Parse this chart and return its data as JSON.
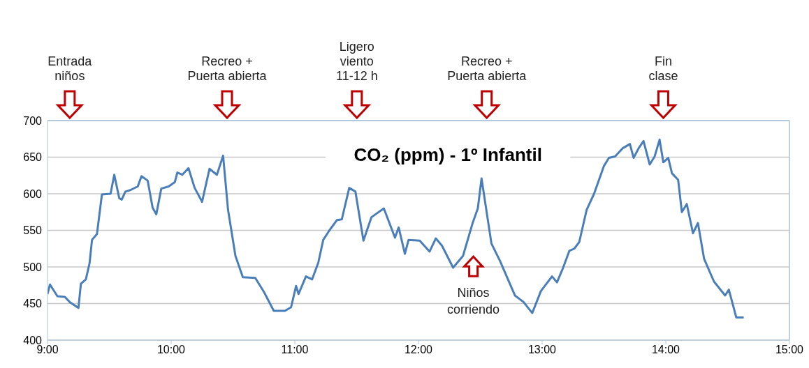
{
  "chart_data": {
    "type": "line",
    "title": "CO₂ (ppm) - 1º Infantil",
    "series": [
      {
        "color": "#4a7ebb",
        "x": [
          9.0,
          9.02,
          9.08,
          9.14,
          9.18,
          9.25,
          9.27,
          9.31,
          9.34,
          9.36,
          9.4,
          9.44,
          9.51,
          9.54,
          9.58,
          9.6,
          9.63,
          9.67,
          9.73,
          9.76,
          9.81,
          9.85,
          9.88,
          9.92,
          9.98,
          10.03,
          10.05,
          10.09,
          10.14,
          10.19,
          10.25,
          10.31,
          10.37,
          10.42,
          10.46,
          10.52,
          10.58,
          10.68,
          10.75,
          10.83,
          10.92,
          10.97,
          11.01,
          11.03,
          11.09,
          11.14,
          11.19,
          11.23,
          11.28,
          11.34,
          11.38,
          11.44,
          11.49,
          11.555,
          11.62,
          11.72,
          11.81,
          11.84,
          11.89,
          11.92,
          12.01,
          12.09,
          12.14,
          12.19,
          12.28,
          12.36,
          12.44,
          12.48,
          12.51,
          12.59,
          12.66,
          12.78,
          12.85,
          12.92,
          12.99,
          13.08,
          13.12,
          13.17,
          13.22,
          13.26,
          13.3,
          13.36,
          13.42,
          13.5,
          13.54,
          13.59,
          13.65,
          13.71,
          13.74,
          13.78,
          13.82,
          13.87,
          13.91,
          13.95,
          13.98,
          14.02,
          14.05,
          14.1,
          14.13,
          14.17,
          14.22,
          14.26,
          14.31,
          14.39,
          14.48,
          14.51,
          14.57,
          14.63
        ],
        "values": [
          463,
          476,
          460,
          459,
          452,
          444,
          477,
          483,
          505,
          537,
          545,
          599,
          600,
          626,
          594,
          592,
          603,
          605,
          610,
          624,
          618,
          581,
          572,
          607,
          610,
          616,
          629,
          626,
          635,
          608,
          589,
          634,
          626,
          652,
          578,
          515,
          486,
          485,
          466,
          440,
          440,
          445,
          474,
          463,
          487,
          483,
          506,
          537,
          550,
          564,
          565,
          608,
          603,
          536,
          568,
          580,
          540,
          554,
          518,
          537,
          536,
          521,
          539,
          529,
          499,
          515,
          561,
          580,
          621,
          532,
          508,
          461,
          452,
          437,
          467,
          487,
          479,
          499,
          522,
          525,
          534,
          578,
          600,
          638,
          649,
          651,
          662,
          668,
          649,
          662,
          672,
          640,
          651,
          674,
          643,
          649,
          628,
          619,
          575,
          586,
          546,
          560,
          511,
          480,
          461,
          469,
          431,
          431
        ]
      }
    ],
    "xlim": [
      9,
      15
    ],
    "xticks": [
      {
        "value": 9,
        "label": "9:00"
      },
      {
        "value": 10,
        "label": "10:00"
      },
      {
        "value": 11,
        "label": "11:00"
      },
      {
        "value": 12,
        "label": "12:00"
      },
      {
        "value": 13,
        "label": "13:00"
      },
      {
        "value": 14,
        "label": "14:00"
      },
      {
        "value": 15,
        "label": "15:00"
      }
    ],
    "ylim": [
      400,
      700
    ],
    "yticks": [
      400,
      450,
      500,
      550,
      600,
      650,
      700
    ],
    "grid": "y",
    "marker": "none",
    "line_style": "solid",
    "legend": false,
    "annotations": [
      "Entrada\nniños",
      "Recreo +\nPuerta abierta",
      "Ligero\nviento\n11-12 h",
      "Recreo +\nPuerta abierta",
      "Fin\nclase",
      "Niños\ncorriendo"
    ]
  }
}
